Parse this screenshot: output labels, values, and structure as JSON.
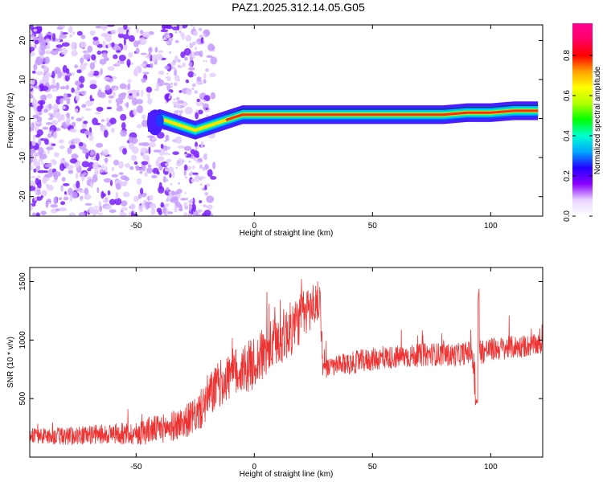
{
  "title": "PAZ1.2025.312.14.05.G05",
  "chart_data": [
    {
      "type": "heatmap",
      "title": "PAZ1.2025.312.14.05.G05",
      "xlabel": "Height of straight line (km)",
      "ylabel": "Frequency (Hz)",
      "xlim": [
        -95,
        122
      ],
      "ylim": [
        -25,
        24
      ],
      "xticks": [
        -50,
        0,
        50,
        100
      ],
      "yticks": [
        -20,
        -10,
        0,
        10,
        20
      ],
      "grid": false,
      "ridge": {
        "description": "strong narrow signal near 0-2 Hz above about -25 km; diffuse noise below about -20 km",
        "x": [
          -45,
          -40,
          -35,
          -30,
          -25,
          -20,
          -15,
          -10,
          -5,
          0,
          5,
          10,
          20,
          40,
          60,
          80,
          90,
          100,
          110,
          120
        ],
        "frequency": [
          -1,
          0,
          -1,
          -2,
          -3,
          -2,
          -1,
          0,
          1,
          1,
          1,
          1,
          1,
          1,
          1,
          1,
          1.5,
          1.5,
          2,
          2
        ]
      },
      "colorbar": {
        "label": "Normalized spectral amplitude",
        "range": [
          0,
          0.96
        ],
        "ticks": [
          0.0,
          0.2,
          0.4,
          0.6,
          0.8
        ],
        "tick_labels": [
          "0.0",
          "0.2",
          "0.4",
          "0.6",
          "0.8"
        ],
        "colors": [
          "#ffffff",
          "#e8d4ff",
          "#8b00ff",
          "#2200ff",
          "#00a8ff",
          "#00ffd0",
          "#00ff00",
          "#b0ff00",
          "#ffff00",
          "#ffa000",
          "#ff0000",
          "#ff0066",
          "#ff0090"
        ]
      }
    },
    {
      "type": "line",
      "xlabel": "Height of straight line (km)",
      "ylabel": "SNR (10 * v/v)",
      "xlim": [
        -95,
        122
      ],
      "ylim": [
        0,
        1620
      ],
      "xticks": [
        -50,
        0,
        50,
        100
      ],
      "yticks": [
        500,
        1000,
        1500
      ],
      "grid": false,
      "series": [
        {
          "name": "SNR",
          "color": "#ee3333",
          "x": [
            -95,
            -90,
            -80,
            -70,
            -60,
            -50,
            -45,
            -40,
            -35,
            -30,
            -25,
            -22,
            -20,
            -15,
            -10,
            -5,
            0,
            5,
            10,
            15,
            20,
            25,
            28,
            29,
            35,
            45,
            55,
            65,
            75,
            85,
            92,
            94,
            95,
            100,
            110,
            121
          ],
          "values": [
            190,
            180,
            180,
            190,
            200,
            200,
            230,
            240,
            260,
            300,
            350,
            420,
            500,
            620,
            700,
            750,
            800,
            900,
            1000,
            1080,
            1200,
            1300,
            1330,
            750,
            780,
            820,
            850,
            860,
            880,
            870,
            900,
            500,
            900,
            920,
            940,
            960
          ],
          "noise_amplitude": [
            60,
            70,
            80,
            80,
            90,
            100,
            120,
            120,
            130,
            140,
            150,
            180,
            200,
            200,
            220,
            220,
            220,
            230,
            230,
            240,
            220,
            200,
            180,
            80,
            90,
            100,
            100,
            100,
            100,
            100,
            100,
            300,
            120,
            100,
            100,
            90
          ]
        }
      ]
    }
  ]
}
